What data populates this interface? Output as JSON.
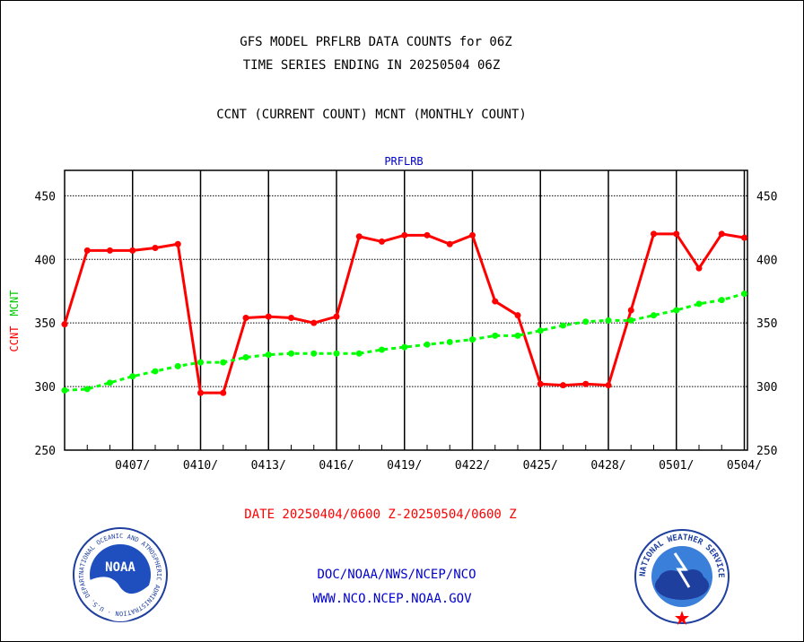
{
  "header": {
    "line1": "GFS MODEL PRFLRB DATA COUNTS for 06Z",
    "line2": "TIME SERIES ENDING IN 20250504 06Z",
    "line3": "CCNT (CURRENT COUNT) MCNT (MONTHLY COUNT)"
  },
  "footer": {
    "date_range": "DATE 20250404/0600 Z-20250504/0600 Z",
    "org_path": "DOC/NOAA/NWS/NCEP/NCO",
    "website": "WWW.NCO.NCEP.NOAA.GOV",
    "noaa_logo": {
      "text": "NOAA",
      "ring_text": "NATIONAL OCEANIC AND ATMOSPHERIC ADMINISTRATION · U.S. DEPARTMENT OF COMMERCE"
    },
    "nws_logo": {
      "ring_text": "NATIONAL WEATHER SERVICE"
    }
  },
  "colors": {
    "ccnt": "#ff0000",
    "mcnt": "#00ff00",
    "title": "#0000cc",
    "link": "#0000cc"
  },
  "chart_data": {
    "type": "line",
    "title": "PRFLRB",
    "ylabel_ccnt": "CCNT",
    "ylabel_mcnt": "MCNT",
    "ylim": [
      250,
      470
    ],
    "yticks": [
      250,
      300,
      350,
      400,
      450
    ],
    "x_start": "20250404",
    "x_end": "20250504",
    "x_min_day": 0,
    "x_max_day": 30,
    "xticks": [
      {
        "day": 3,
        "label": "0407/"
      },
      {
        "day": 6,
        "label": "0410/"
      },
      {
        "day": 9,
        "label": "0413/"
      },
      {
        "day": 12,
        "label": "0416/"
      },
      {
        "day": 15,
        "label": "0419/"
      },
      {
        "day": 18,
        "label": "0422/"
      },
      {
        "day": 21,
        "label": "0425/"
      },
      {
        "day": 24,
        "label": "0428/"
      },
      {
        "day": 27,
        "label": "0501/"
      },
      {
        "day": 30,
        "label": "0504/"
      }
    ],
    "grid": true,
    "series": [
      {
        "name": "CCNT",
        "x": [
          0,
          1,
          2,
          3,
          4,
          5,
          6,
          7,
          8,
          9,
          10,
          11,
          12,
          13,
          14,
          15,
          16,
          17,
          18,
          19,
          20,
          21,
          22,
          23,
          24,
          25,
          26,
          27,
          28,
          29,
          30
        ],
        "values": [
          349,
          407,
          407,
          407,
          409,
          412,
          295,
          295,
          354,
          355,
          354,
          350,
          355,
          418,
          414,
          419,
          419,
          412,
          419,
          367,
          356,
          302,
          301,
          302,
          301,
          360,
          420,
          420,
          393,
          420,
          417
        ]
      },
      {
        "name": "MCNT",
        "x": [
          0,
          1,
          2,
          3,
          4,
          5,
          6,
          7,
          8,
          9,
          10,
          11,
          12,
          13,
          14,
          15,
          16,
          17,
          18,
          19,
          20,
          21,
          22,
          23,
          24,
          25,
          26,
          27,
          28,
          29,
          30
        ],
        "values": [
          297,
          298,
          303,
          308,
          312,
          316,
          319,
          319,
          323,
          325,
          326,
          326,
          326,
          326,
          329,
          331,
          333,
          335,
          337,
          340,
          340,
          344,
          348,
          351,
          352,
          352,
          356,
          360,
          365,
          368,
          373
        ]
      }
    ]
  }
}
